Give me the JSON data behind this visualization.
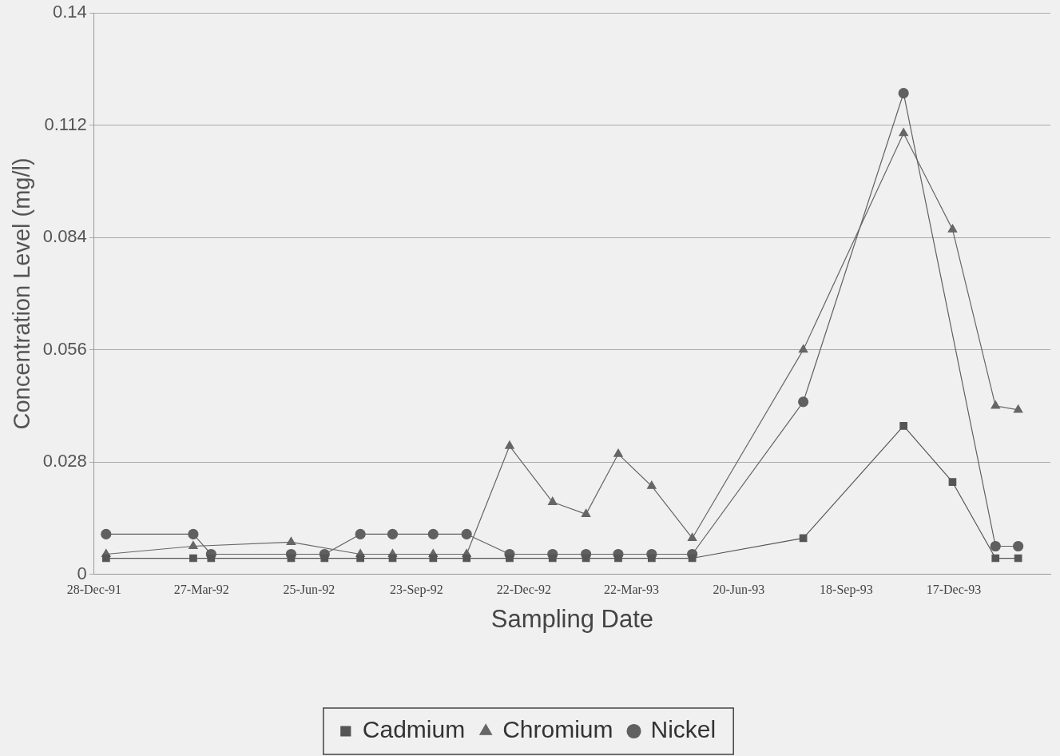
{
  "chart_data": {
    "type": "line",
    "xlabel": "Sampling Date",
    "ylabel": "Concentration Level (mg/l)",
    "x": [
      "1992-01-07",
      "1992-03-20",
      "1992-04-04",
      "1992-06-10",
      "1992-07-08",
      "1992-08-07",
      "1992-09-03",
      "1992-10-07",
      "1992-11-04",
      "1992-12-10",
      "1993-01-15",
      "1993-02-12",
      "1993-03-11",
      "1993-04-08",
      "1993-05-12",
      "1993-08-13",
      "1993-11-05",
      "1993-12-16",
      "1994-01-21",
      "1994-02-09"
    ],
    "series": [
      {
        "name": "Cadmium",
        "color": "#555555",
        "marker": "square",
        "values": [
          0.004,
          0.004,
          0.004,
          0.004,
          0.004,
          0.004,
          0.004,
          0.004,
          0.004,
          0.004,
          0.004,
          0.004,
          0.004,
          0.004,
          0.004,
          0.009,
          0.037,
          0.023,
          0.004,
          0.004
        ]
      },
      {
        "name": "Chromium",
        "color": "#666666",
        "marker": "triangle",
        "values": [
          0.005,
          0.007,
          null,
          0.008,
          null,
          0.005,
          0.005,
          0.005,
          0.005,
          0.032,
          0.018,
          0.015,
          0.03,
          0.022,
          0.009,
          0.056,
          0.11,
          0.086,
          0.042,
          0.041
        ]
      },
      {
        "name": "Nickel",
        "color": "#606060",
        "marker": "circle",
        "values": [
          0.01,
          0.01,
          0.005,
          0.005,
          0.005,
          0.01,
          0.01,
          0.01,
          0.01,
          0.005,
          0.005,
          0.005,
          0.005,
          0.005,
          0.005,
          0.043,
          0.12,
          null,
          0.007,
          0.007
        ]
      }
    ],
    "xlim": [
      "1991-12-28",
      "1994-03-08"
    ],
    "xticks": [
      {
        "value": "1991-12-28",
        "label": "28-Dec-91"
      },
      {
        "value": "1992-03-27",
        "label": "27-Mar-92"
      },
      {
        "value": "1992-06-25",
        "label": "25-Jun-92"
      },
      {
        "value": "1992-09-23",
        "label": "23-Sep-92"
      },
      {
        "value": "1992-12-22",
        "label": "22-Dec-92"
      },
      {
        "value": "1993-03-22",
        "label": "22-Mar-93"
      },
      {
        "value": "1993-06-20",
        "label": "20-Jun-93"
      },
      {
        "value": "1993-09-18",
        "label": "18-Sep-93"
      },
      {
        "value": "1993-12-17",
        "label": "17-Dec-93"
      }
    ],
    "ylim": [
      0,
      0.14
    ],
    "yticks": [
      0,
      0.028,
      0.056,
      0.084,
      0.112,
      0.14
    ],
    "grid": "y",
    "legend": "bottom"
  }
}
